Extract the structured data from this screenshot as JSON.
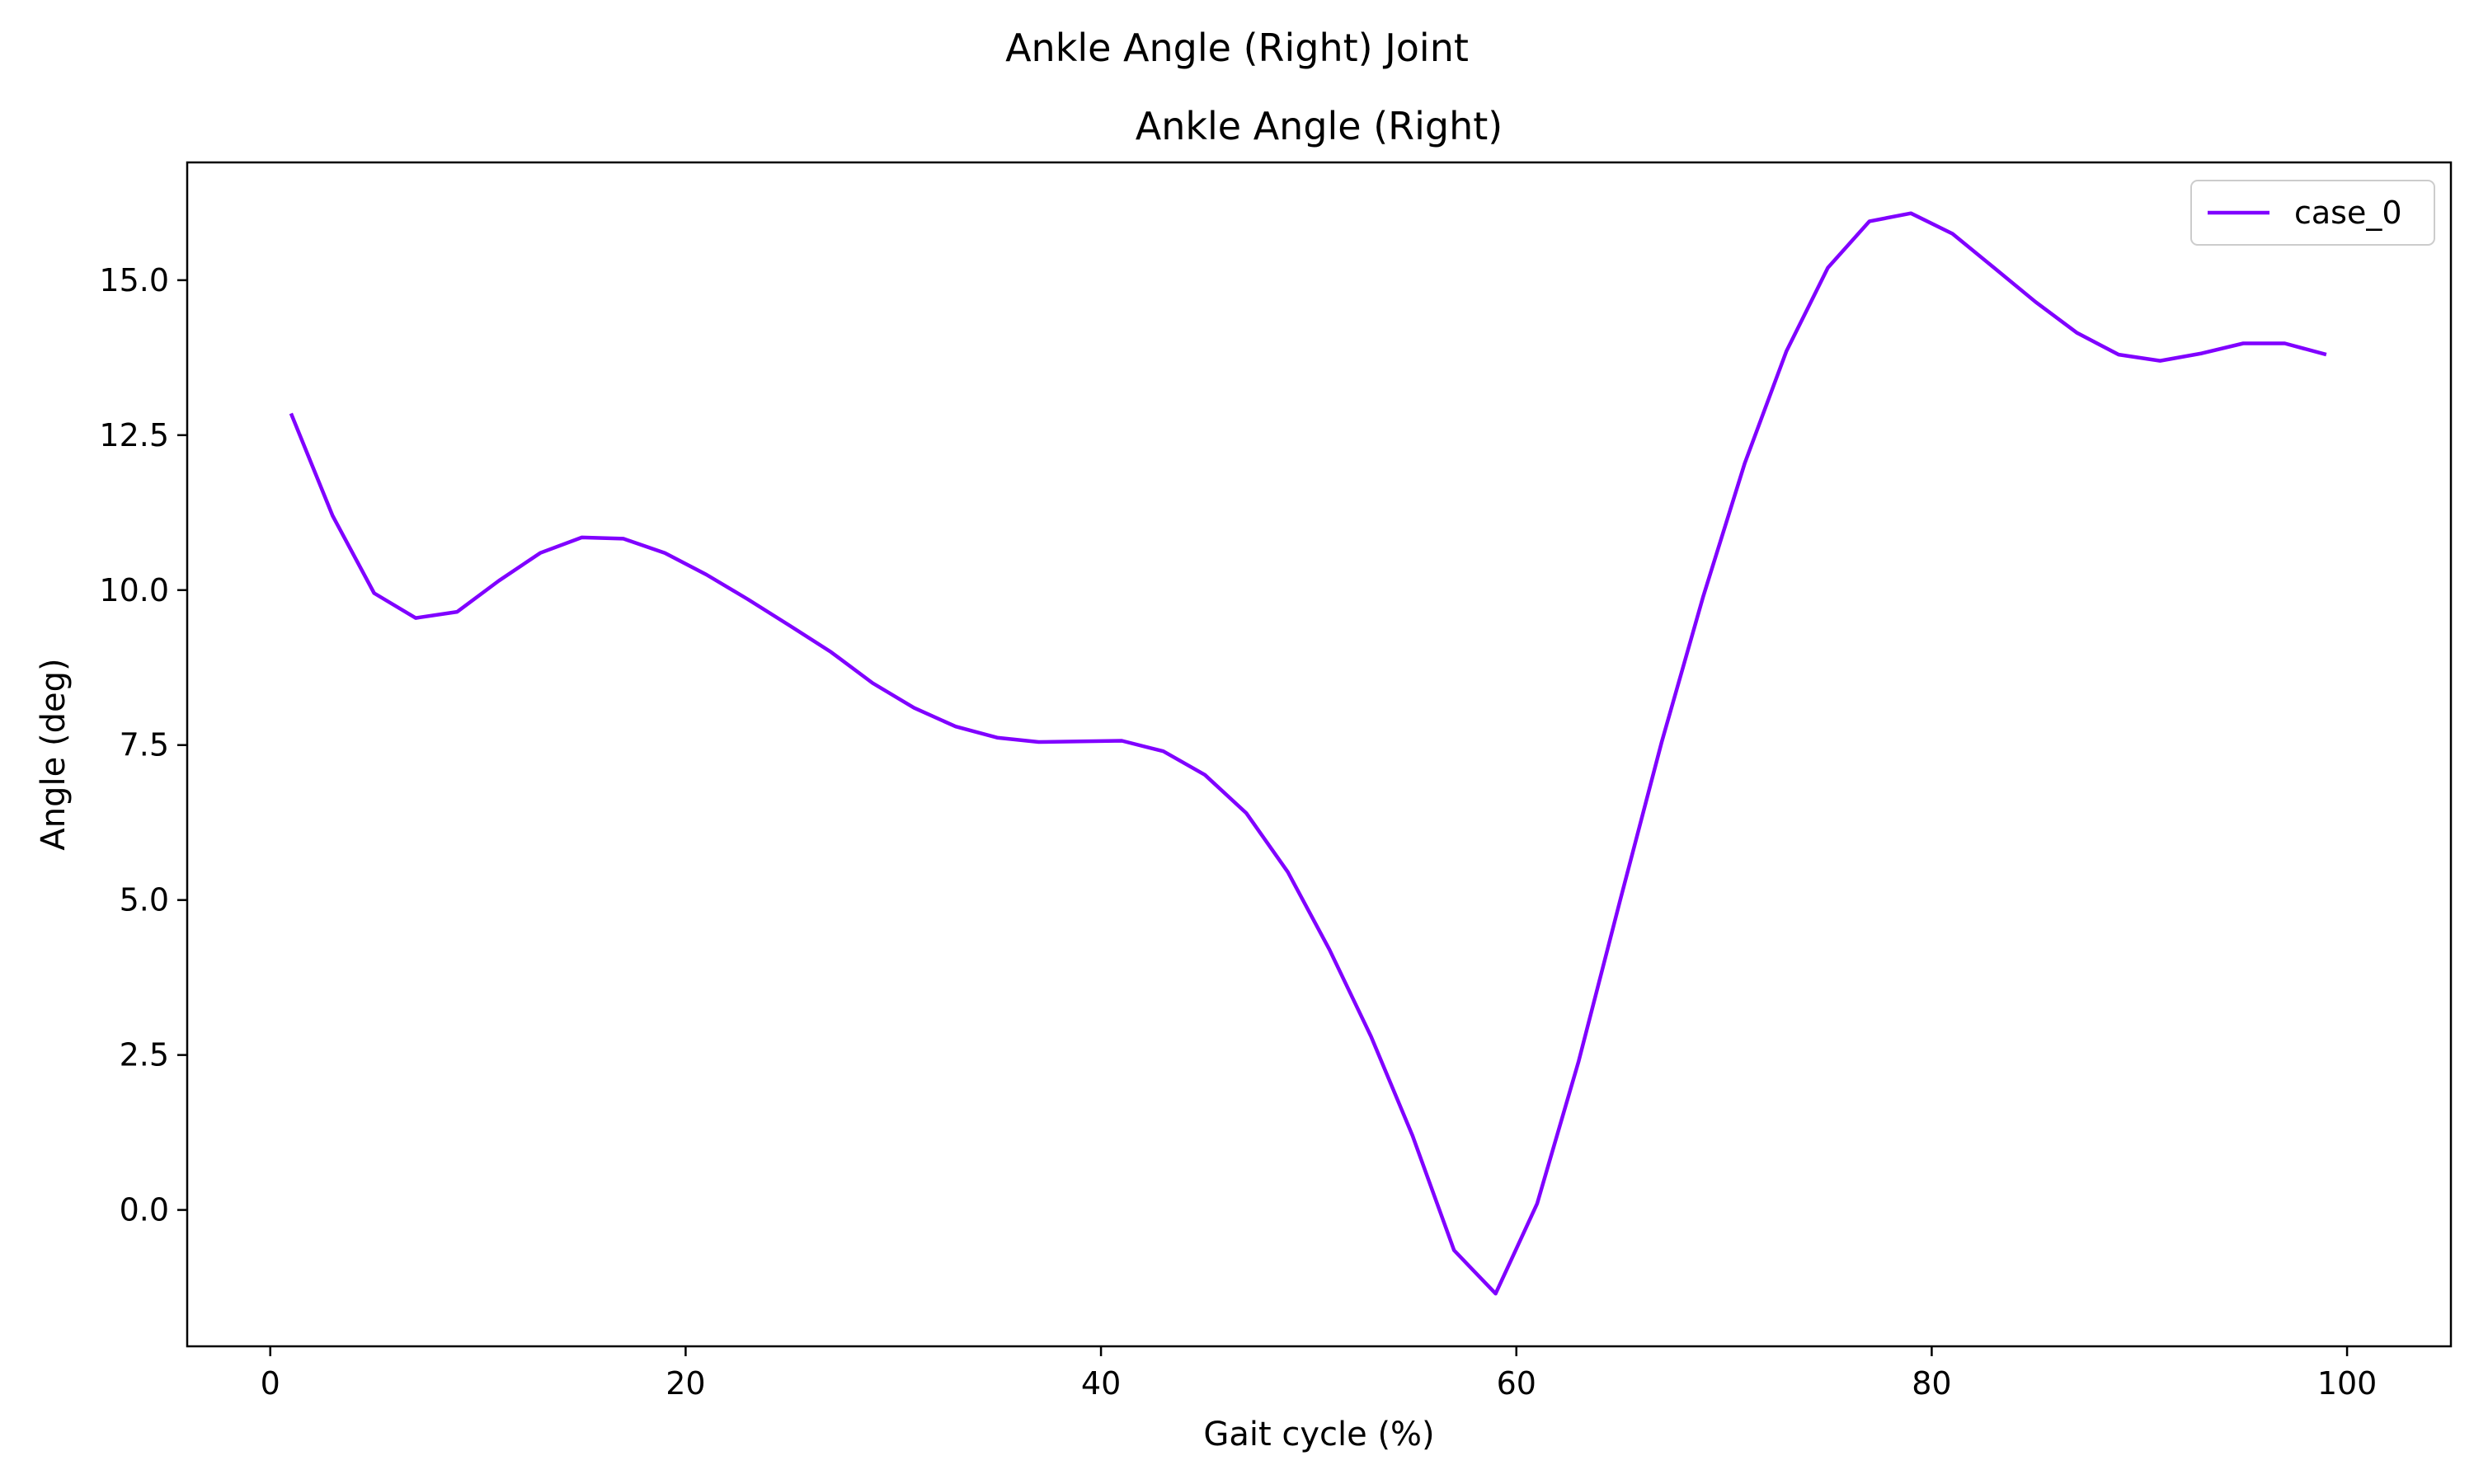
{
  "figure_title": "Ankle Angle (Right) Joint",
  "chart_data": {
    "type": "line",
    "title": "Ankle Angle (Right)",
    "xlabel": "Gait cycle (%)",
    "ylabel": "Angle (deg)",
    "xlim": [
      -4,
      105
    ],
    "ylim": [
      -2.2,
      16.9
    ],
    "xticks": [
      0,
      20,
      40,
      60,
      80,
      100
    ],
    "xtick_labels": [
      "0",
      "20",
      "40",
      "60",
      "80",
      "100"
    ],
    "yticks": [
      0,
      2.5,
      5,
      7.5,
      10,
      12.5,
      15
    ],
    "ytick_labels": [
      "0.0",
      "2.5",
      "5.0",
      "7.5",
      "10.0",
      "12.5",
      "15.0"
    ],
    "grid": false,
    "legend_position": "upper right",
    "series": [
      {
        "name": "case_0",
        "color": "#8000ff",
        "x": [
          1,
          3,
          5,
          7,
          9,
          11,
          13,
          15,
          17,
          19,
          21,
          23,
          25,
          27,
          29,
          31,
          33,
          35,
          37,
          39,
          41,
          43,
          45,
          47,
          49,
          51,
          53,
          55,
          57,
          59,
          61,
          63,
          65,
          67,
          69,
          71,
          73,
          75,
          77,
          79,
          81,
          83,
          85,
          87,
          89,
          91,
          93,
          95,
          97,
          99
        ],
        "y": [
          12.85,
          11.2,
          9.95,
          9.55,
          9.65,
          10.15,
          10.6,
          10.85,
          10.83,
          10.6,
          10.25,
          9.85,
          9.43,
          9.0,
          8.5,
          8.1,
          7.8,
          7.62,
          7.55,
          7.56,
          7.57,
          7.4,
          7.02,
          6.4,
          5.45,
          4.2,
          2.8,
          1.2,
          -0.65,
          -1.35,
          0.1,
          2.4,
          5.0,
          7.55,
          9.9,
          12.05,
          13.85,
          15.2,
          15.95,
          16.08,
          15.75,
          15.2,
          14.65,
          14.15,
          13.8,
          13.7,
          13.82,
          13.98,
          13.98,
          13.8
        ]
      }
    ]
  }
}
